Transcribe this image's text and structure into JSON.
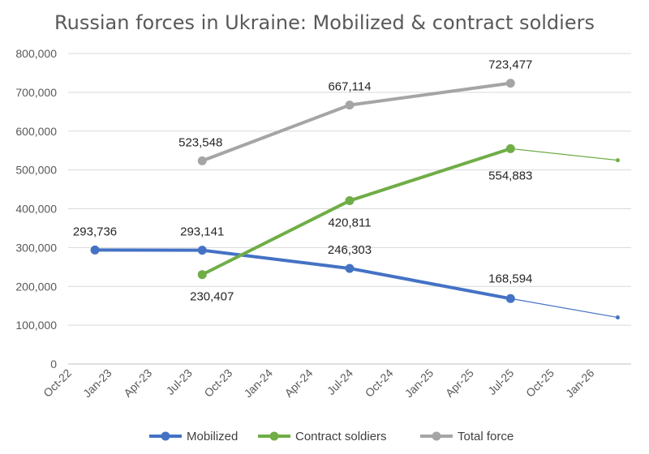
{
  "chart_data": {
    "type": "line",
    "title": "Russian forces in Ukraine: Mobilized & contract soldiers",
    "xlabel": "",
    "ylabel": "",
    "ylim": [
      0,
      800000
    ],
    "yticks": [
      0,
      100000,
      200000,
      300000,
      400000,
      500000,
      600000,
      700000,
      800000
    ],
    "ytick_labels": [
      "0",
      "100,000",
      "200,000",
      "300,000",
      "400,000",
      "500,000",
      "600,000",
      "700,000",
      "800,000"
    ],
    "xlim": [
      "2022-10",
      "2026-04"
    ],
    "xtick_labels": [
      "Oct-22",
      "Jan-23",
      "Apr-23",
      "Jul-23",
      "Oct-23",
      "Jan-24",
      "Apr-24",
      "Jul-24",
      "Oct-24",
      "Jan-25",
      "Apr-25",
      "Jul-25",
      "Oct-25",
      "Jan-26"
    ],
    "grid": "horizontal",
    "legend": "bottom",
    "series": [
      {
        "name": "Mobilized",
        "color": "#4472C4",
        "points": [
          {
            "x": "2022-12",
            "y": 293736,
            "label": "293,736"
          },
          {
            "x": "2023-08",
            "y": 293141,
            "label": "293,141"
          },
          {
            "x": "2024-07",
            "y": 246303,
            "label": "246,303"
          },
          {
            "x": "2025-07",
            "y": 168594,
            "label": "168,594"
          }
        ],
        "projection": [
          {
            "x": "2025-07",
            "y": 168594
          },
          {
            "x": "2026-03",
            "y": 120000
          }
        ]
      },
      {
        "name": "Contract soldiers",
        "color": "#70AD47",
        "points": [
          {
            "x": "2023-08",
            "y": 230407,
            "label": "230,407"
          },
          {
            "x": "2024-07",
            "y": 420811,
            "label": "420,811"
          },
          {
            "x": "2025-07",
            "y": 554883,
            "label": "554,883"
          }
        ],
        "projection": [
          {
            "x": "2025-07",
            "y": 554883
          },
          {
            "x": "2026-03",
            "y": 525000
          }
        ]
      },
      {
        "name": "Total force",
        "color": "#A5A5A5",
        "points": [
          {
            "x": "2023-08",
            "y": 523548,
            "label": "523,548"
          },
          {
            "x": "2024-07",
            "y": 667114,
            "label": "667,114"
          },
          {
            "x": "2025-07",
            "y": 723477,
            "label": "723,477"
          }
        ]
      }
    ]
  }
}
